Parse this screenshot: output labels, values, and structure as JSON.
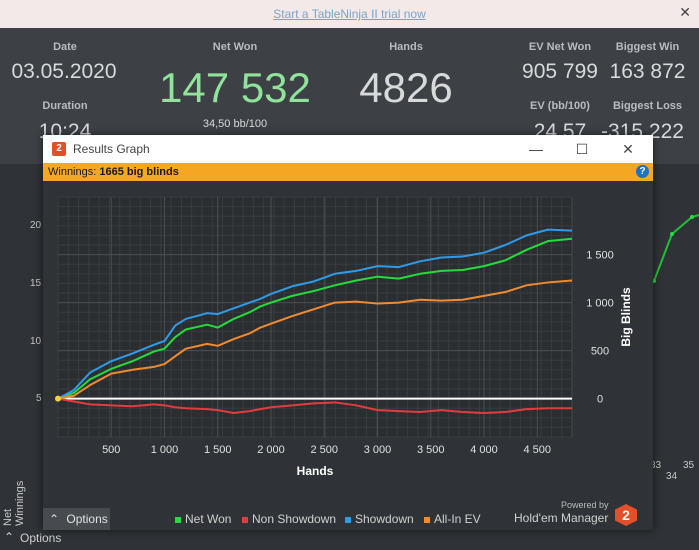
{
  "promo": {
    "link_text": "Start a TableNinja II trial now",
    "close": "✕"
  },
  "stats": {
    "date_label": "Date",
    "date_value": "03.05.2020",
    "duration_label": "Duration",
    "duration_value": "10:24",
    "netwon_label": "Net Won",
    "netwon_value": "147 532",
    "netwon_sub": "34,50 bb/100",
    "hands_label": "Hands",
    "hands_value": "4826",
    "evnet_label": "EV Net Won",
    "evnet_value": "905 799",
    "evbb_label": "EV (bb/100)",
    "evbb_value": "24,57",
    "bigwin_label": "Biggest Win",
    "bigwin_value": "163 872",
    "bigloss_label": "Biggest Loss",
    "bigloss_value": "-315 222"
  },
  "background_chart": {
    "ylabel": "Net Winnings",
    "yticks": [
      "20",
      "15",
      "10",
      "5"
    ],
    "xticks": [
      "33",
      "34",
      "35"
    ],
    "options_label": "Options"
  },
  "window": {
    "title": "Results Graph",
    "title_icon": "2",
    "minimize": "—",
    "maximize": "☐",
    "close": "✕",
    "winnings_label": "Winnings:",
    "winnings_value": "1665 big blinds",
    "help": "?",
    "options_label": "Options",
    "powered_by": "Powered by",
    "brand": "Hold'em Manager",
    "brand_logo": "2",
    "legend": [
      {
        "name": "Net Won",
        "color": "#22dd3b"
      },
      {
        "name": "Non Showdown",
        "color": "#e23c3c"
      },
      {
        "name": "Showdown",
        "color": "#2f9be8"
      },
      {
        "name": "All-In EV",
        "color": "#f28a2e"
      }
    ]
  },
  "chart_data": {
    "type": "line",
    "xlabel": "Hands",
    "ylabel": "Big Blinds",
    "xlim": [
      0,
      4826
    ],
    "ylim": [
      -400,
      2100
    ],
    "xticks": [
      "500",
      "1 000",
      "1 500",
      "2 000",
      "2 500",
      "3 000",
      "3 500",
      "4 000",
      "4 500"
    ],
    "xtick_values": [
      500,
      1000,
      1500,
      2000,
      2500,
      3000,
      3500,
      4000,
      4500
    ],
    "yticks": [
      "0",
      "500",
      "1 000",
      "1 500"
    ],
    "ytick_values": [
      0,
      500,
      1000,
      1500
    ],
    "grid": true,
    "x": [
      0,
      150,
      300,
      500,
      700,
      900,
      1000,
      1100,
      1200,
      1400,
      1500,
      1650,
      1800,
      1900,
      2000,
      2200,
      2400,
      2600,
      2800,
      3000,
      3200,
      3400,
      3600,
      3800,
      4000,
      4200,
      4400,
      4600,
      4826
    ],
    "series": [
      {
        "name": "Net Won",
        "color": "#22dd3b",
        "values": [
          0,
          60,
          200,
          310,
          390,
          490,
          520,
          640,
          720,
          770,
          740,
          830,
          900,
          960,
          1000,
          1070,
          1120,
          1180,
          1230,
          1270,
          1250,
          1300,
          1330,
          1340,
          1380,
          1440,
          1550,
          1640,
          1665
        ]
      },
      {
        "name": "Non Showdown",
        "color": "#e23c3c",
        "values": [
          0,
          -30,
          -60,
          -70,
          -80,
          -60,
          -70,
          -90,
          -100,
          -110,
          -120,
          -150,
          -130,
          -110,
          -90,
          -70,
          -50,
          -40,
          -70,
          -120,
          -130,
          -140,
          -120,
          -140,
          -150,
          -140,
          -110,
          -100,
          -100
        ]
      },
      {
        "name": "Showdown",
        "color": "#2f9be8",
        "values": [
          0,
          90,
          270,
          390,
          470,
          560,
          600,
          760,
          830,
          890,
          880,
          940,
          1000,
          1040,
          1090,
          1170,
          1220,
          1300,
          1330,
          1380,
          1370,
          1430,
          1470,
          1480,
          1520,
          1600,
          1700,
          1760,
          1750
        ]
      },
      {
        "name": "All-In EV",
        "color": "#f28a2e",
        "values": [
          0,
          30,
          140,
          260,
          300,
          330,
          360,
          440,
          520,
          570,
          550,
          620,
          680,
          740,
          780,
          860,
          930,
          1000,
          1010,
          990,
          1000,
          1030,
          1020,
          1030,
          1070,
          1110,
          1180,
          1210,
          1230
        ]
      }
    ]
  }
}
